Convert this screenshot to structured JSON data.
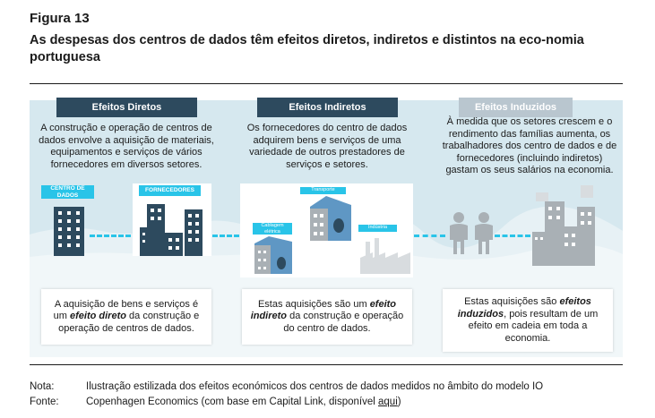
{
  "figure": {
    "label": "Figura 13",
    "title": "As despesas dos centros de dados têm efeitos diretos, indiretos e distintos na eco-nomia portuguesa"
  },
  "columns": {
    "direct": {
      "header": "Efeitos Diretos",
      "top_text": "A construção e operação de centros de dados envolve a aquisição de materiais, equipamentos e serviços de vários fornecedores em diversos setores.",
      "tag_datacenter": "CENTRO DE DADOS",
      "tag_suppliers": "FORNECEDORES",
      "bottom_pre": "A aquisição de bens e serviços é um ",
      "bottom_em": "efeito direto",
      "bottom_post": " da construção e operação de centros de dados."
    },
    "indirect": {
      "header": "Efeitos Indiretos",
      "top_text": "Os fornecedores do centro de dados adquirem bens e serviços de uma variedade de outros prestadores de serviços e setores.",
      "tag_transport": "Transporte",
      "tag_cabling": "Cablagem elétrica",
      "tag_industry": "Indústria",
      "bottom_pre": "Estas aquisições são um ",
      "bottom_em": "efeito indireto",
      "bottom_post": " da construção e operação do centro de dados."
    },
    "induced": {
      "header": "Efeitos Induzidos",
      "top_text": "À medida que os setores crescem e o rendimento das famílias aumenta, os trabalhadores dos centro de dados e de fornecedores (incluindo indiretos) gastam os seus salários na economia.",
      "bottom_pre": "Estas aquisições são ",
      "bottom_em": "efeitos induzidos",
      "bottom_post": ", pois resultam de um efeito em cadeia em toda a economia."
    }
  },
  "notes": {
    "nota_label": "Nota:",
    "nota_text": "Ilustração estilizada dos efeitos económicos dos centros de dados medidos no âmbito do modelo IO",
    "fonte_label": "Fonte:",
    "fonte_text": "Copenhagen Economics (com base em Capital Link, disponível ",
    "fonte_link": "aqui",
    "fonte_close": ")"
  },
  "colors": {
    "header_dark": "#2d4a5e",
    "header_grey": "#b9c6cf",
    "accent_cyan": "#29c4e8",
    "panel_bg": "#d6e8ef",
    "building_dark": "#2d4a5e",
    "building_blue": "#5f97c4",
    "building_grey": "#a9b0b5"
  }
}
